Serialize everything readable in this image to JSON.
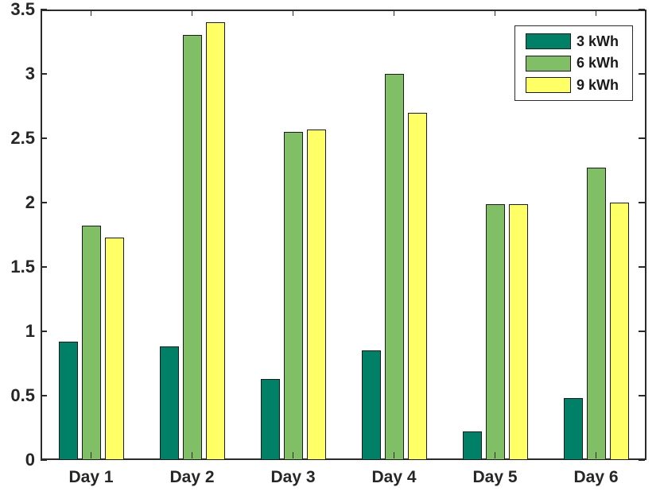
{
  "figure": {
    "background_color": "#ffffff",
    "axis_color": "#2b2b2b",
    "text_color": "#262626",
    "bar_edge_color": "#1c1c1c"
  },
  "chart_data": {
    "type": "bar",
    "title": "",
    "xlabel": "",
    "ylabel": "",
    "grid": false,
    "legend_position": "top-right",
    "categories": [
      "Day 1",
      "Day 2",
      "Day 3",
      "Day 4",
      "Day 5",
      "Day 6"
    ],
    "series": [
      {
        "name": "3 kWh",
        "color": "#008066",
        "values": [
          0.92,
          0.88,
          0.63,
          0.85,
          0.22,
          0.48
        ]
      },
      {
        "name": "6 kWh",
        "color": "#80BF66",
        "values": [
          1.82,
          3.3,
          2.55,
          3.0,
          1.99,
          2.27
        ]
      },
      {
        "name": "9 kWh",
        "color": "#FFFF66",
        "values": [
          1.73,
          3.4,
          2.57,
          2.7,
          1.99,
          2.0
        ]
      }
    ],
    "ylim": [
      0,
      3.5
    ],
    "yticks": [
      0,
      0.5,
      1,
      1.5,
      2,
      2.5,
      3,
      3.5
    ],
    "ytick_labels": [
      "0",
      "0.5",
      "1",
      "1.5",
      "2",
      "2.5",
      "3",
      "3.5"
    ]
  }
}
